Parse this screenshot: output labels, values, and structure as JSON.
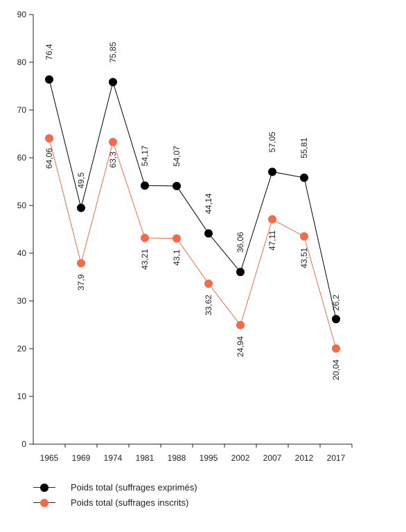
{
  "chart_data": {
    "type": "line",
    "x": [
      "1965",
      "1969",
      "1974",
      "1981",
      "1988",
      "1995",
      "2002",
      "2007",
      "2012",
      "2017"
    ],
    "ylim": [
      0,
      90
    ],
    "yticks": [
      0,
      10,
      20,
      30,
      40,
      50,
      60,
      70,
      80,
      90
    ],
    "grid": false,
    "legend_position": "bottom-left",
    "series": [
      {
        "name": "Poids total (suffrages exprimés)",
        "color": "#000000",
        "values": [
          76.4,
          49.5,
          75.85,
          54.17,
          54.07,
          44.14,
          36.06,
          57.05,
          55.81,
          26.2
        ],
        "labels": [
          "76,4",
          "49,5",
          "75,85",
          "54,17",
          "54,07",
          "44,14",
          "36,06",
          "57,05",
          "55,81",
          "26,2"
        ]
      },
      {
        "name": "Poids total (suffrages inscrits)",
        "color": "#f26b4a",
        "values": [
          64.06,
          37.9,
          63.3,
          43.21,
          43.1,
          33.62,
          24.94,
          47.11,
          43.51,
          20.04
        ],
        "labels": [
          "64,06",
          "37,9",
          "63,3",
          "43,21",
          "43,1",
          "33,62",
          "24,94",
          "47,11",
          "43,51",
          "20,04"
        ]
      }
    ]
  }
}
